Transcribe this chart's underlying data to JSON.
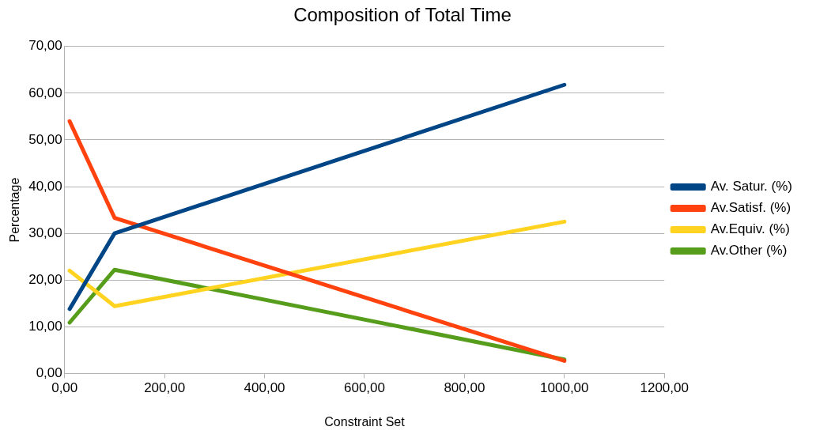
{
  "chart_data": {
    "type": "line",
    "title": "Composition of Total Time",
    "xlabel": "Constraint Set",
    "ylabel": "Percentage",
    "x": [
      10,
      100,
      1000
    ],
    "series": [
      {
        "name": "Av. Satur. (%)",
        "color": "#004586",
        "values": [
          13.8,
          30,
          61.8
        ]
      },
      {
        "name": "Av.Satisf. (%)",
        "color": "#ff420e",
        "values": [
          54,
          33.3,
          2.7
        ]
      },
      {
        "name": "Av.Equiv. (%)",
        "color": "#ffd320",
        "values": [
          22,
          14.4,
          32.5
        ]
      },
      {
        "name": "Av.Other (%)",
        "color": "#579d1c",
        "values": [
          10.9,
          22.2,
          3
        ]
      }
    ],
    "xlim": [
      0,
      1200
    ],
    "xticks": [
      {
        "value": 0,
        "label": "0,00"
      },
      {
        "value": 200,
        "label": "200,00"
      },
      {
        "value": 400,
        "label": "400,00"
      },
      {
        "value": 600,
        "label": "600,00"
      },
      {
        "value": 800,
        "label": "800,00"
      },
      {
        "value": 1000,
        "label": "1000,00"
      },
      {
        "value": 1200,
        "label": "1200,00"
      }
    ],
    "ylim": [
      0,
      70
    ],
    "yticks": [
      {
        "value": 0,
        "label": "0,00"
      },
      {
        "value": 10,
        "label": "10,00"
      },
      {
        "value": 20,
        "label": "20,00"
      },
      {
        "value": 30,
        "label": "30,00"
      },
      {
        "value": 40,
        "label": "40,00"
      },
      {
        "value": 50,
        "label": "50,00"
      },
      {
        "value": 60,
        "label": "60,00"
      },
      {
        "value": 70,
        "label": "70,00"
      }
    ],
    "grid": "y",
    "legend": "right",
    "marker": "none",
    "line_style": "solid"
  }
}
